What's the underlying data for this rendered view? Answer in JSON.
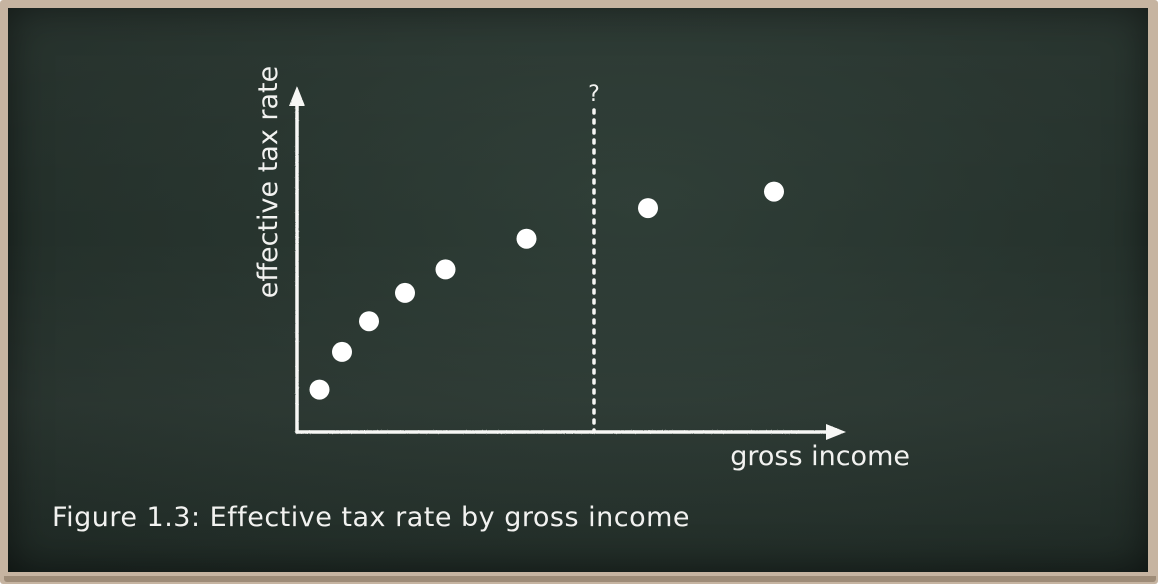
{
  "chart_data": {
    "type": "scatter",
    "title": "",
    "xlabel": "gross income",
    "ylabel": "effective tax rate",
    "x_ticks": [],
    "y_ticks": [],
    "grid": false,
    "marker_color": "#ffffff",
    "axis_color": "#ffffff",
    "points": [
      {
        "x": 0.5,
        "y": 1.8
      },
      {
        "x": 1.0,
        "y": 3.4
      },
      {
        "x": 1.6,
        "y": 4.7
      },
      {
        "x": 2.4,
        "y": 5.9
      },
      {
        "x": 3.3,
        "y": 6.9
      },
      {
        "x": 5.1,
        "y": 8.2
      },
      {
        "x": 7.8,
        "y": 9.5
      },
      {
        "x": 10.6,
        "y": 10.2
      }
    ],
    "xlim": [
      0,
      12
    ],
    "ylim": [
      0,
      14
    ],
    "threshold": {
      "x": 6.6,
      "label": "?",
      "style": "dotted"
    }
  },
  "caption": "Figure 1.3: Effective tax rate by gross income",
  "colors": {
    "board": "#27342e",
    "frame": "#c6b4a1",
    "chalk": "#f2f2f0"
  }
}
